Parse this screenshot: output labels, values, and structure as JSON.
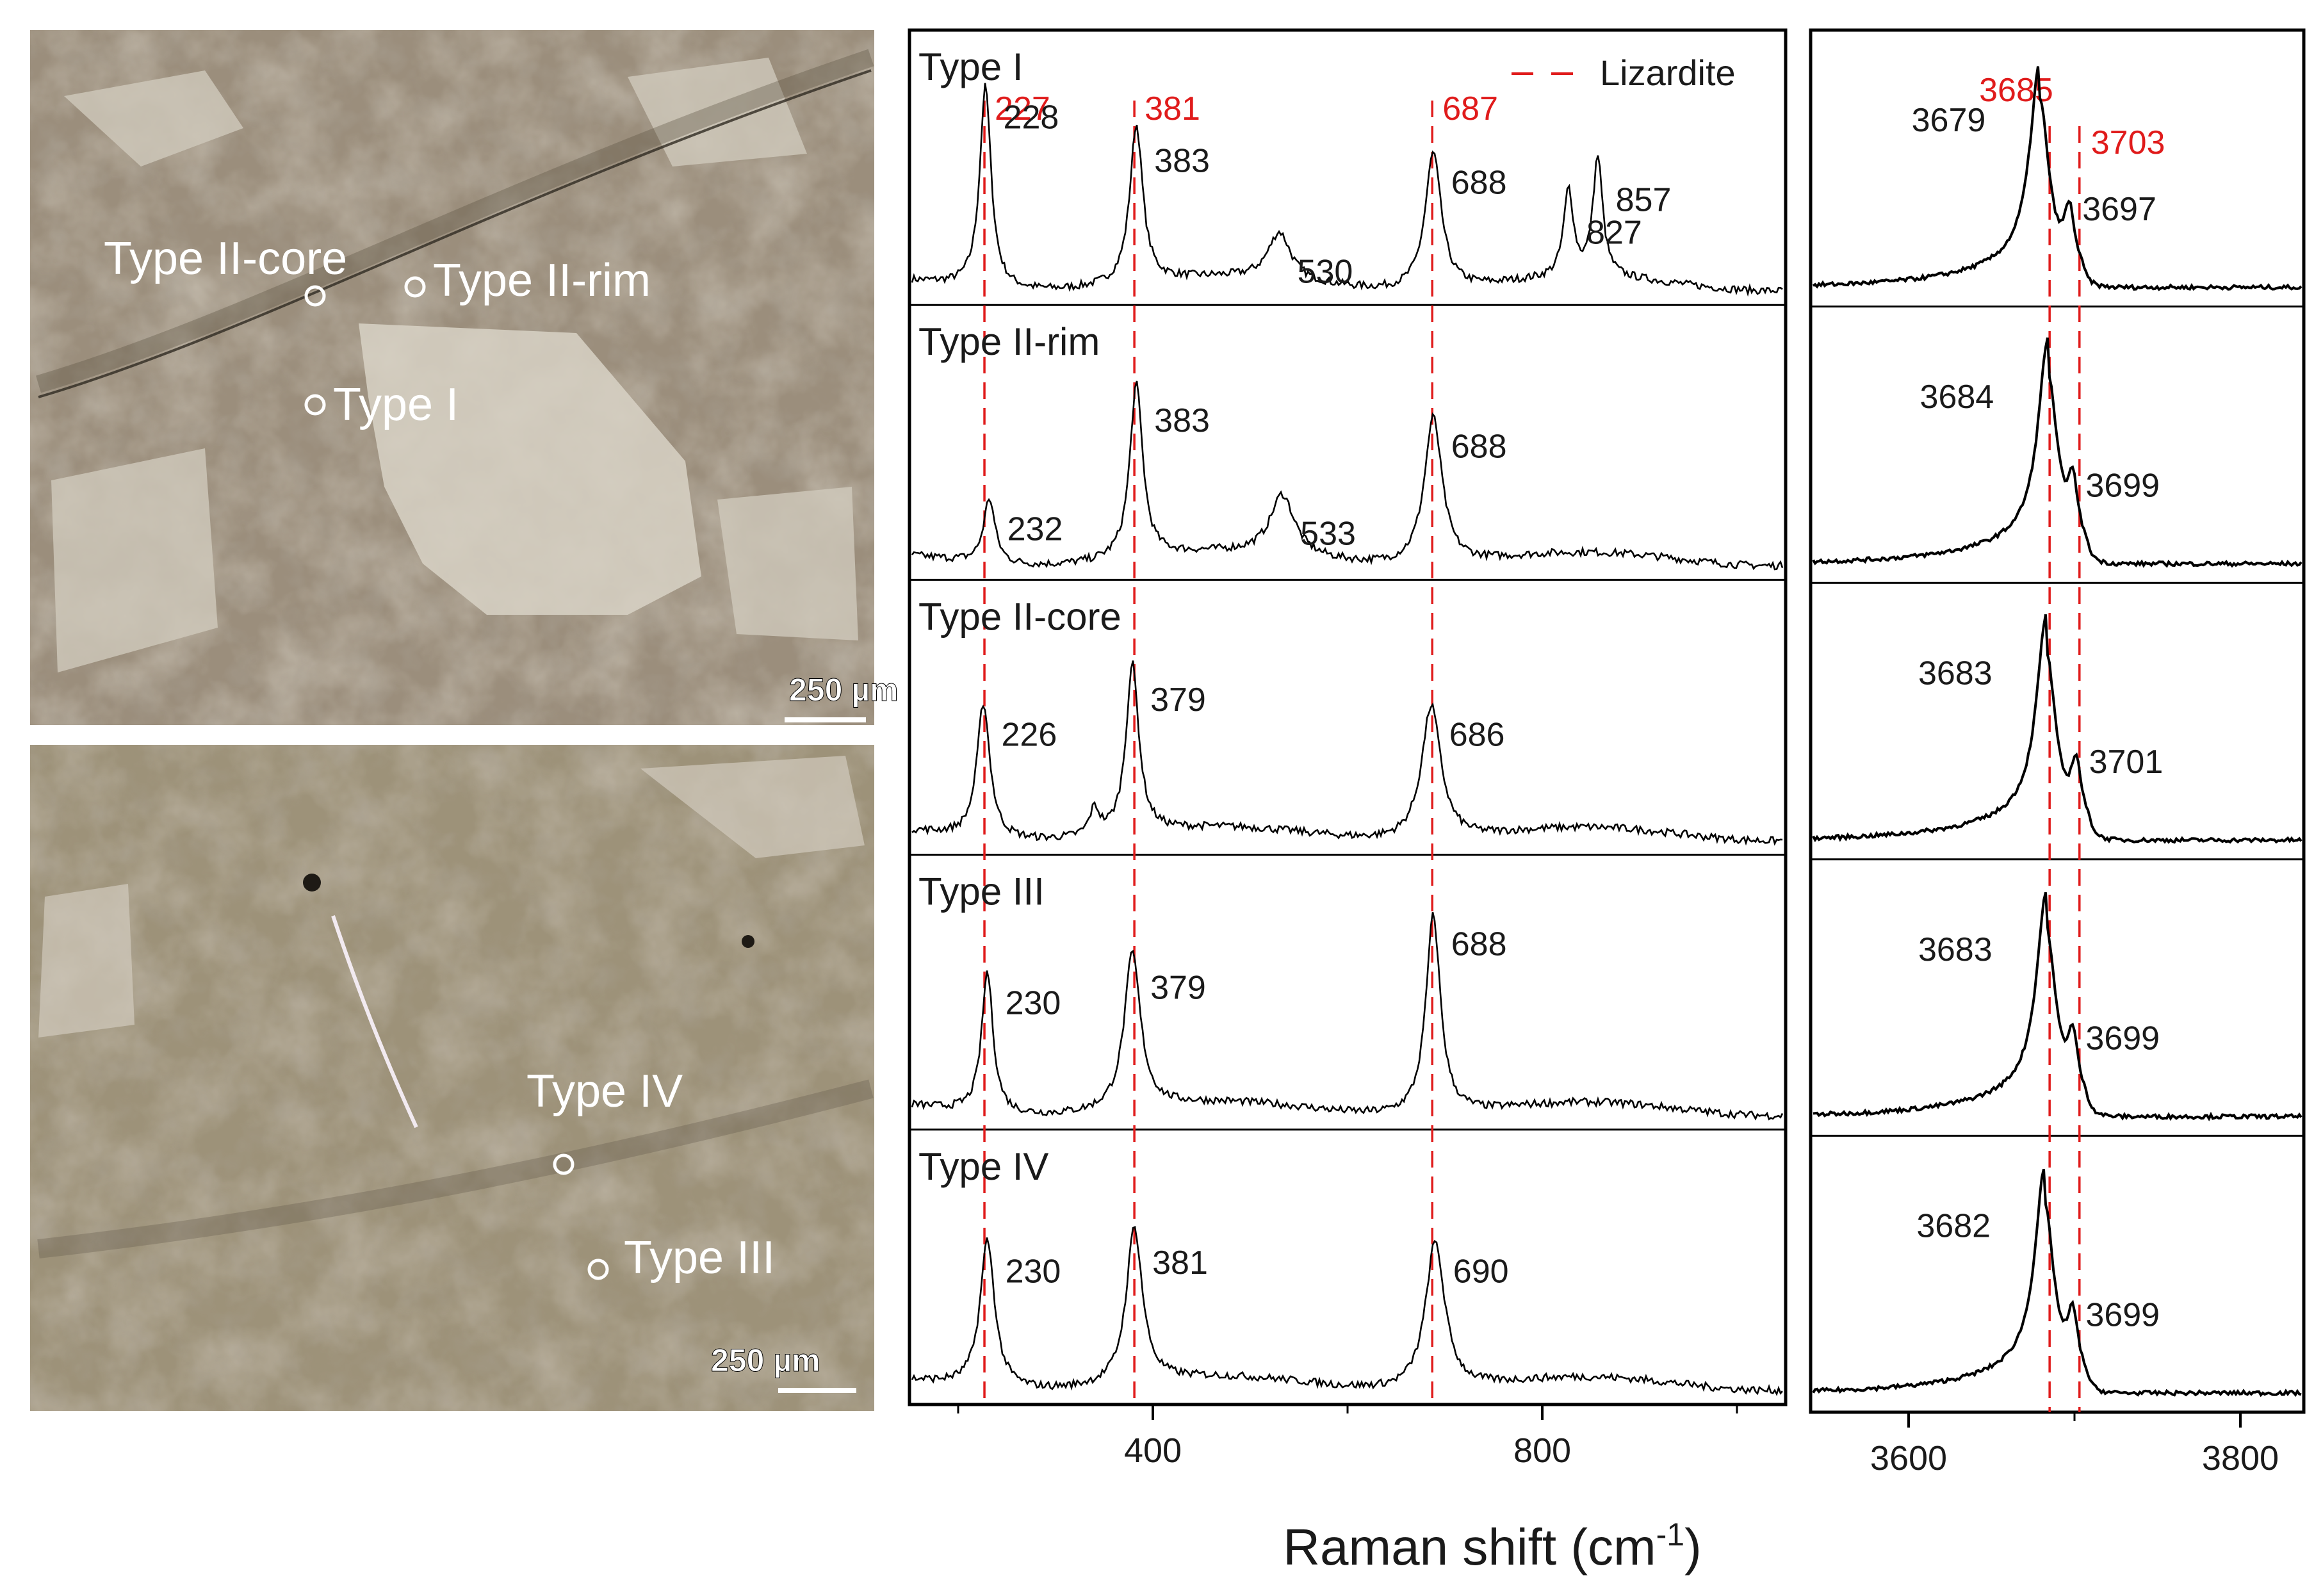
{
  "micrographs": [
    {
      "scale_bar": "250 µm",
      "spots": [
        {
          "label": "Type II-core"
        },
        {
          "label": "Type II-rim"
        },
        {
          "label": "Type I"
        }
      ]
    },
    {
      "scale_bar": "250 µm",
      "spots": [
        {
          "label": "Type IV"
        },
        {
          "label": "Type III"
        }
      ]
    }
  ],
  "chart_data": [
    {
      "type": "line",
      "xlabel": "Raman shift (cm-1)",
      "ylabel": "",
      "xlim": [
        150,
        1050
      ],
      "xticks": [
        400,
        800
      ],
      "legend": {
        "label": "Lizardite",
        "placement": "top-right",
        "style": "dashed",
        "color": "#e01b1b"
      },
      "reference_lines": [
        227,
        381,
        687
      ],
      "reference_labels": [
        "227",
        "381",
        "687"
      ],
      "series": [
        {
          "name": "Type I",
          "peaks": [
            {
              "x": 228,
              "h": 0.93,
              "w": 7,
              "label": "228"
            },
            {
              "x": 383,
              "h": 0.73,
              "w": 8,
              "label": "383"
            },
            {
              "x": 530,
              "h": 0.22,
              "w": 14,
              "label": "530"
            },
            {
              "x": 688,
              "h": 0.63,
              "w": 10,
              "label": "688"
            },
            {
              "x": 827,
              "h": 0.4,
              "w": 6,
              "label": "827"
            },
            {
              "x": 857,
              "h": 0.55,
              "w": 6,
              "label": "857"
            }
          ]
        },
        {
          "name": "Type II-rim",
          "peaks": [
            {
              "x": 232,
              "h": 0.3,
              "w": 7,
              "label": "232"
            },
            {
              "x": 383,
              "h": 0.8,
              "w": 8,
              "label": "383"
            },
            {
              "x": 533,
              "h": 0.28,
              "w": 15,
              "label": "533"
            },
            {
              "x": 688,
              "h": 0.68,
              "w": 11,
              "label": "688"
            }
          ]
        },
        {
          "name": "Type II-core",
          "peaks": [
            {
              "x": 226,
              "h": 0.62,
              "w": 8,
              "label": "226"
            },
            {
              "x": 340,
              "h": 0.12,
              "w": 6,
              "label": ""
            },
            {
              "x": 379,
              "h": 0.78,
              "w": 8,
              "label": "379"
            },
            {
              "x": 686,
              "h": 0.62,
              "w": 12,
              "label": "686"
            }
          ]
        },
        {
          "name": "Type III",
          "peaks": [
            {
              "x": 230,
              "h": 0.65,
              "w": 7,
              "label": "230"
            },
            {
              "x": 379,
              "h": 0.72,
              "w": 10,
              "label": "379"
            },
            {
              "x": 688,
              "h": 0.92,
              "w": 9,
              "label": "688"
            }
          ]
        },
        {
          "name": "Type IV",
          "peaks": [
            {
              "x": 230,
              "h": 0.68,
              "w": 9,
              "label": "230"
            },
            {
              "x": 381,
              "h": 0.72,
              "w": 10,
              "label": "381"
            },
            {
              "x": 690,
              "h": 0.68,
              "w": 12,
              "label": "690"
            }
          ]
        }
      ]
    },
    {
      "type": "line",
      "xlabel": "Raman shift (cm-1)",
      "ylabel": "",
      "xlim": [
        3600,
        3800
      ],
      "xticks": [
        3600,
        3800
      ],
      "reference_lines": [
        3685,
        3703
      ],
      "reference_labels": [
        "3685",
        "3703"
      ],
      "series": [
        {
          "name": "Type I",
          "main": {
            "x": 3679,
            "label": "3679"
          },
          "shoulder": {
            "x": 3697,
            "label": "3697"
          }
        },
        {
          "name": "Type II-rim",
          "main": {
            "x": 3684,
            "label": "3684"
          },
          "shoulder": {
            "x": 3699,
            "label": "3699"
          }
        },
        {
          "name": "Type II-core",
          "main": {
            "x": 3683,
            "label": "3683"
          },
          "shoulder": {
            "x": 3701,
            "label": "3701"
          }
        },
        {
          "name": "Type III",
          "main": {
            "x": 3683,
            "label": "3683"
          },
          "shoulder": {
            "x": 3699,
            "label": "3699"
          }
        },
        {
          "name": "Type IV",
          "main": {
            "x": 3682,
            "label": "3682"
          },
          "shoulder": {
            "x": 3699,
            "label": "3699"
          }
        }
      ]
    }
  ],
  "axis_title": {
    "text": "Raman shift (cm",
    "superscript": "-1",
    "suffix": ")"
  }
}
